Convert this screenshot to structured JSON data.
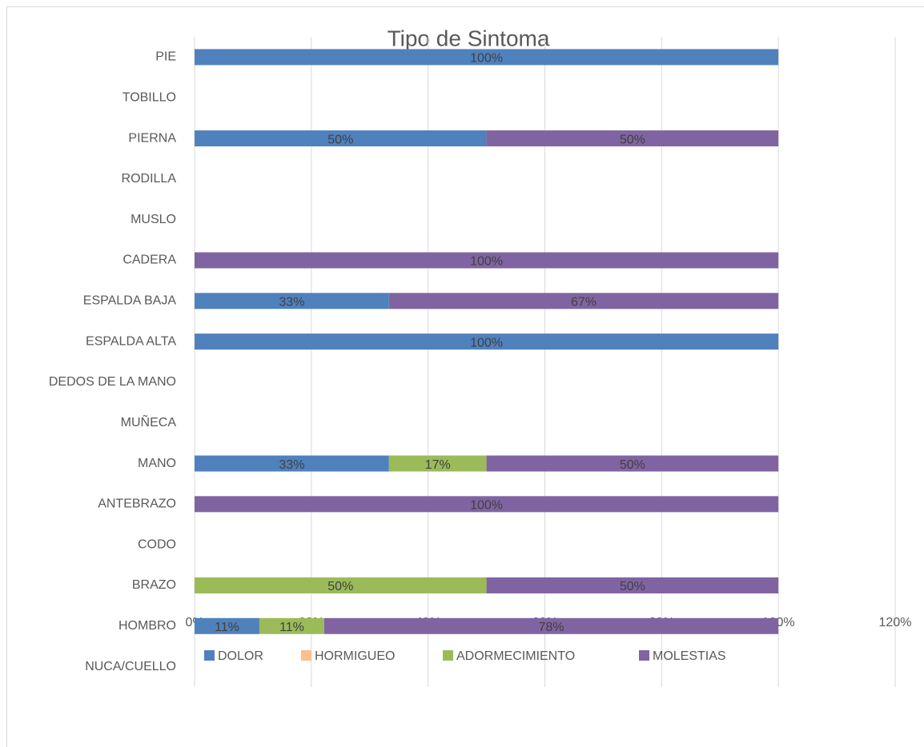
{
  "chart_data": {
    "type": "stacked_bar_horizontal",
    "title": "Tipo de Sintoma",
    "categories": [
      "NUCA/CUELLO",
      "HOMBRO",
      "BRAZO",
      "CODO",
      "ANTEBRAZO",
      "MANO",
      "MUÑECA",
      "DEDOS DE LA MANO",
      "ESPALDA ALTA",
      "ESPALDA BAJA",
      "CADERA",
      "MUSLO",
      "RODILLA",
      "PIERNA",
      "TOBILLO",
      "PIE"
    ],
    "series": [
      {
        "name": "DOLOR",
        "color": "#4f81bd",
        "values": [
          null,
          11.1,
          null,
          null,
          null,
          33.3,
          null,
          null,
          100,
          33.3,
          null,
          null,
          null,
          50,
          null,
          100
        ],
        "value_labels": [
          null,
          "11%",
          null,
          null,
          null,
          "33%",
          null,
          null,
          "100%",
          "33%",
          null,
          null,
          null,
          "50%",
          null,
          "100%"
        ]
      },
      {
        "name": "HORMIGUEO",
        "color": "#fac090",
        "values": [
          null,
          null,
          null,
          null,
          null,
          null,
          null,
          null,
          null,
          null,
          null,
          null,
          null,
          null,
          null,
          null
        ],
        "value_labels": [
          null,
          null,
          null,
          null,
          null,
          null,
          null,
          null,
          null,
          null,
          null,
          null,
          null,
          null,
          null,
          null
        ]
      },
      {
        "name": "ADORMECIMIENTO",
        "color": "#9bbb59",
        "values": [
          null,
          11.1,
          50,
          null,
          null,
          16.7,
          null,
          null,
          null,
          null,
          null,
          null,
          null,
          null,
          null,
          null
        ],
        "value_labels": [
          null,
          "11%",
          "50%",
          null,
          null,
          "17%",
          null,
          null,
          null,
          null,
          null,
          null,
          null,
          null,
          null,
          null
        ]
      },
      {
        "name": "MOLESTIAS",
        "color": "#8064a2",
        "values": [
          null,
          77.8,
          50,
          null,
          100,
          50,
          null,
          null,
          null,
          66.7,
          100,
          null,
          null,
          50,
          null,
          null
        ],
        "value_labels": [
          null,
          "78%",
          "50%",
          null,
          "100%",
          "50%",
          null,
          null,
          null,
          "67%",
          "100%",
          null,
          null,
          "50%",
          null,
          null
        ]
      }
    ],
    "xlim": [
      0,
      120
    ],
    "xticks": [
      {
        "value": 0,
        "label": "0%"
      },
      {
        "value": 20,
        "label": "20%"
      },
      {
        "value": 40,
        "label": "40%"
      },
      {
        "value": 60,
        "label": "60%"
      },
      {
        "value": 80,
        "label": "80%"
      },
      {
        "value": 100,
        "label": "100%"
      },
      {
        "value": 120,
        "label": "120%"
      }
    ],
    "grid": true,
    "legend": "bottom"
  }
}
